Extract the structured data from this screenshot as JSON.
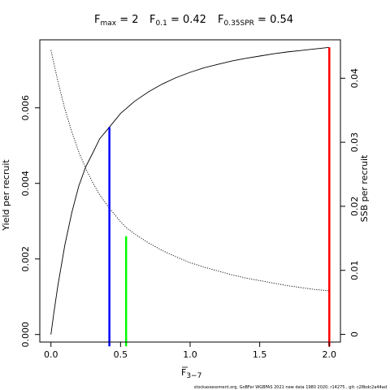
{
  "chart_data": {
    "type": "line",
    "title_parts": [
      {
        "main": "F",
        "sub": "max",
        "rest": " = 2"
      },
      {
        "main": "F",
        "sub": "0.1",
        "rest": " = 0.42"
      },
      {
        "main": "F",
        "sub": "0.35SPR",
        "rest": " = 0.54"
      }
    ],
    "xlabel": {
      "main": "F",
      "sub": "3−7"
    },
    "ylabel_left": "Yield per recruit",
    "ylabel_right": "SSB per recruit",
    "xlim": [
      -0.08,
      2.08
    ],
    "ylim_left": [
      -0.0002,
      0.0078
    ],
    "ylim_right": [
      -0.0012,
      0.046
    ],
    "x_ticks": [
      0,
      0.5,
      1,
      1.5,
      2
    ],
    "x_tick_labels": [
      "0.0",
      "0.5",
      "1.0",
      "1.5",
      "2.0"
    ],
    "y_left_ticks": [
      0,
      0.002,
      0.004,
      0.006
    ],
    "y_left_tick_labels": [
      "0.000",
      "0.002",
      "0.004",
      "0.006"
    ],
    "y_right_ticks": [
      0,
      0.01,
      0.02,
      0.03,
      0.04
    ],
    "y_right_tick_labels": [
      "0",
      "0.01",
      "0.02",
      "0.03",
      "0.04"
    ],
    "series": [
      {
        "name": "Yield per recruit",
        "axis": "left",
        "style": "solid",
        "color": "#000000",
        "x": [
          0,
          0.02,
          0.05,
          0.1,
          0.15,
          0.2,
          0.25,
          0.3,
          0.35,
          0.42,
          0.5,
          0.6,
          0.7,
          0.8,
          0.9,
          1.0,
          1.1,
          1.2,
          1.3,
          1.4,
          1.5,
          1.6,
          1.7,
          1.8,
          1.9,
          2.0
        ],
        "y": [
          0,
          0.00055,
          0.0013,
          0.00237,
          0.00323,
          0.00393,
          0.00444,
          0.0048,
          0.00518,
          0.00549,
          0.00585,
          0.00617,
          0.00642,
          0.00663,
          0.0068,
          0.00694,
          0.00706,
          0.00715,
          0.00724,
          0.00731,
          0.00737,
          0.00743,
          0.00748,
          0.00752,
          0.00756,
          0.0076
        ]
      },
      {
        "name": "SSB per recruit",
        "axis": "right",
        "style": "dotted",
        "color": "#000000",
        "x": [
          0,
          0.05,
          0.1,
          0.15,
          0.2,
          0.25,
          0.3,
          0.35,
          0.42,
          0.5,
          0.54,
          0.6,
          0.7,
          0.8,
          0.9,
          1.0,
          1.1,
          1.2,
          1.3,
          1.4,
          1.5,
          1.6,
          1.7,
          1.8,
          1.9,
          2.0
        ],
        "y": [
          0.0444,
          0.0395,
          0.0352,
          0.0316,
          0.0285,
          0.0259,
          0.0237,
          0.0218,
          0.0197,
          0.0176,
          0.0167,
          0.0157,
          0.0143,
          0.0131,
          0.0121,
          0.0112,
          0.0105,
          0.0099,
          0.0093,
          0.0088,
          0.0084,
          0.008,
          0.0076,
          0.0073,
          0.007,
          0.0068
        ]
      }
    ],
    "reference_lines": [
      {
        "name": "F0.1",
        "x": 0.42,
        "y_top_left": 0.00549,
        "color": "#0000ff"
      },
      {
        "name": "F0.35SPR",
        "x": 0.54,
        "y_top_left": 0.0026,
        "color": "#00ff00"
      },
      {
        "name": "Fmax",
        "x": 2.0,
        "y_top_left": 0.0076,
        "color": "#ff0000"
      }
    ],
    "grid": false,
    "legend": "none"
  },
  "footer": "stockassessment.org, GoBFer WGBFAS 2021 new data 1980 2020, r14275 , git: c28bdc2a44ad"
}
